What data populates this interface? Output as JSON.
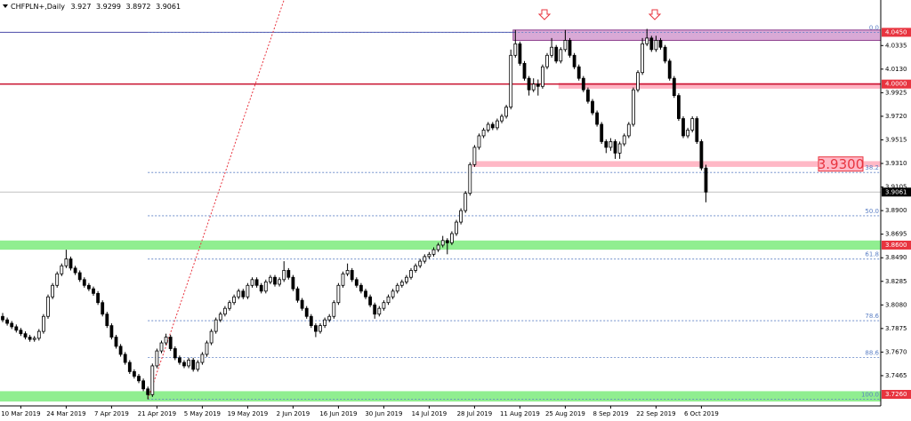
{
  "chart_data": {
    "type": "candlestick",
    "symbol": "CHFPLN+,Daily",
    "up_color": "#ffffff",
    "down_color": "#000000",
    "wick_color": "#000000",
    "categories": [
      null,
      null,
      null,
      null,
      "10 Mar 2019",
      null,
      null,
      null,
      null,
      null,
      null,
      null,
      null,
      null,
      "24 Mar 2019",
      null,
      null,
      null,
      null,
      null,
      null,
      null,
      null,
      null,
      "7 Apr 2019",
      null,
      null,
      null,
      null,
      null,
      null,
      null,
      null,
      null,
      "21 Apr 2019",
      null,
      null,
      null,
      null,
      null,
      null,
      null,
      null,
      null,
      "5 May 2019",
      null,
      null,
      null,
      null,
      null,
      null,
      null,
      null,
      null,
      "19 May 2019",
      null,
      null,
      null,
      null,
      null,
      null,
      null,
      null,
      null,
      "2 Jun 2019",
      null,
      null,
      null,
      null,
      null,
      null,
      null,
      null,
      null,
      "16 Jun 2019",
      null,
      null,
      null,
      null,
      null,
      null,
      null,
      null,
      null,
      "30 Jun 2019",
      null,
      null,
      null,
      null,
      null,
      null,
      null,
      null,
      null,
      "14 Jul 2019",
      null,
      null,
      null,
      null,
      null,
      null,
      null,
      null,
      null,
      "28 Jul 2019",
      null,
      null,
      null,
      null,
      null,
      null,
      null,
      null,
      null,
      "11 Aug 2019",
      null,
      null,
      null,
      null,
      null,
      null,
      null,
      null,
      null,
      "25 Aug 2019",
      null,
      null,
      null,
      null,
      null,
      null,
      null,
      null,
      null,
      "8 Sep 2019",
      null,
      null,
      null,
      null,
      null,
      null,
      null,
      null,
      null,
      "22 Sep 2019",
      null,
      null,
      null,
      null,
      null,
      null,
      null,
      null,
      null,
      "6 Oct 2019",
      null
    ],
    "ohlc": [
      [
        3.798,
        3.801,
        3.793,
        3.795
      ],
      [
        3.795,
        3.797,
        3.79,
        3.792
      ],
      [
        3.792,
        3.794,
        3.787,
        3.789
      ],
      [
        3.789,
        3.791,
        3.784,
        3.786
      ],
      [
        3.786,
        3.788,
        3.781,
        3.783
      ],
      [
        3.783,
        3.785,
        3.778,
        3.78
      ],
      [
        3.78,
        3.782,
        3.776,
        3.778
      ],
      [
        3.778,
        3.781,
        3.776,
        3.779
      ],
      [
        3.779,
        3.787,
        3.777,
        3.785
      ],
      [
        3.785,
        3.8,
        3.783,
        3.798
      ],
      [
        3.798,
        3.817,
        3.796,
        3.815
      ],
      [
        3.815,
        3.827,
        3.813,
        3.825
      ],
      [
        3.825,
        3.837,
        3.823,
        3.835
      ],
      [
        3.835,
        3.844,
        3.833,
        3.842
      ],
      [
        3.842,
        3.856,
        3.84,
        3.848
      ],
      [
        3.848,
        3.85,
        3.838,
        3.84
      ],
      [
        3.84,
        3.842,
        3.834,
        3.836
      ],
      [
        3.836,
        3.838,
        3.828,
        3.83
      ],
      [
        3.83,
        3.832,
        3.823,
        3.825
      ],
      [
        3.825,
        3.827,
        3.82,
        3.822
      ],
      [
        3.822,
        3.824,
        3.816,
        3.818
      ],
      [
        3.818,
        3.82,
        3.808,
        3.81
      ],
      [
        3.81,
        3.812,
        3.798,
        3.8
      ],
      [
        3.8,
        3.802,
        3.788,
        3.79
      ],
      [
        3.79,
        3.792,
        3.778,
        3.78
      ],
      [
        3.78,
        3.782,
        3.77,
        3.772
      ],
      [
        3.772,
        3.774,
        3.763,
        3.765
      ],
      [
        3.765,
        3.767,
        3.756,
        3.758
      ],
      [
        3.758,
        3.76,
        3.748,
        3.75
      ],
      [
        3.75,
        3.752,
        3.744,
        3.746
      ],
      [
        3.746,
        3.748,
        3.74,
        3.742
      ],
      [
        3.742,
        3.744,
        3.733,
        3.735
      ],
      [
        3.735,
        3.737,
        3.726,
        3.73
      ],
      [
        3.73,
        3.757,
        3.728,
        3.755
      ],
      [
        3.755,
        3.77,
        3.753,
        3.768
      ],
      [
        3.768,
        3.777,
        3.766,
        3.775
      ],
      [
        3.775,
        3.783,
        3.773,
        3.78
      ],
      [
        3.78,
        3.782,
        3.768,
        3.77
      ],
      [
        3.77,
        3.772,
        3.76,
        3.762
      ],
      [
        3.762,
        3.764,
        3.756,
        3.758
      ],
      [
        3.758,
        3.76,
        3.753,
        3.755
      ],
      [
        3.755,
        3.762,
        3.753,
        3.76
      ],
      [
        3.76,
        3.762,
        3.75,
        3.752
      ],
      [
        3.752,
        3.76,
        3.75,
        3.758
      ],
      [
        3.758,
        3.767,
        3.756,
        3.765
      ],
      [
        3.765,
        3.777,
        3.763,
        3.775
      ],
      [
        3.775,
        3.787,
        3.773,
        3.785
      ],
      [
        3.785,
        3.797,
        3.783,
        3.795
      ],
      [
        3.795,
        3.802,
        3.793,
        3.8
      ],
      [
        3.8,
        3.807,
        3.798,
        3.805
      ],
      [
        3.805,
        3.812,
        3.803,
        3.81
      ],
      [
        3.81,
        3.817,
        3.808,
        3.815
      ],
      [
        3.815,
        3.822,
        3.813,
        3.82
      ],
      [
        3.82,
        3.822,
        3.813,
        3.815
      ],
      [
        3.815,
        3.827,
        3.813,
        3.825
      ],
      [
        3.825,
        3.832,
        3.823,
        3.83
      ],
      [
        3.83,
        3.832,
        3.823,
        3.825
      ],
      [
        3.825,
        3.827,
        3.818,
        3.82
      ],
      [
        3.82,
        3.83,
        3.818,
        3.828
      ],
      [
        3.828,
        3.834,
        3.826,
        3.832
      ],
      [
        3.832,
        3.834,
        3.824,
        3.826
      ],
      [
        3.826,
        3.832,
        3.824,
        3.83
      ],
      [
        3.83,
        3.846,
        3.828,
        3.838
      ],
      [
        3.838,
        3.84,
        3.83,
        3.832
      ],
      [
        3.832,
        3.834,
        3.82,
        3.822
      ],
      [
        3.822,
        3.824,
        3.81,
        3.812
      ],
      [
        3.812,
        3.814,
        3.803,
        3.805
      ],
      [
        3.805,
        3.807,
        3.796,
        3.798
      ],
      [
        3.798,
        3.8,
        3.788,
        3.79
      ],
      [
        3.79,
        3.792,
        3.78,
        3.785
      ],
      [
        3.785,
        3.792,
        3.783,
        3.79
      ],
      [
        3.79,
        3.797,
        3.788,
        3.795
      ],
      [
        3.795,
        3.8,
        3.793,
        3.798
      ],
      [
        3.798,
        3.812,
        3.796,
        3.81
      ],
      [
        3.81,
        3.827,
        3.808,
        3.825
      ],
      [
        3.825,
        3.837,
        3.823,
        3.835
      ],
      [
        3.835,
        3.844,
        3.833,
        3.838
      ],
      [
        3.838,
        3.84,
        3.828,
        3.83
      ],
      [
        3.83,
        3.832,
        3.823,
        3.825
      ],
      [
        3.825,
        3.827,
        3.818,
        3.82
      ],
      [
        3.82,
        3.822,
        3.813,
        3.815
      ],
      [
        3.815,
        3.817,
        3.806,
        3.808
      ],
      [
        3.808,
        3.81,
        3.796,
        3.8
      ],
      [
        3.8,
        3.807,
        3.798,
        3.805
      ],
      [
        3.805,
        3.812,
        3.803,
        3.81
      ],
      [
        3.81,
        3.817,
        3.808,
        3.815
      ],
      [
        3.815,
        3.822,
        3.813,
        3.82
      ],
      [
        3.82,
        3.827,
        3.818,
        3.825
      ],
      [
        3.825,
        3.83,
        3.823,
        3.828
      ],
      [
        3.828,
        3.834,
        3.826,
        3.832
      ],
      [
        3.832,
        3.84,
        3.83,
        3.838
      ],
      [
        3.838,
        3.844,
        3.836,
        3.842
      ],
      [
        3.842,
        3.848,
        3.84,
        3.846
      ],
      [
        3.846,
        3.852,
        3.844,
        3.85
      ],
      [
        3.85,
        3.854,
        3.848,
        3.852
      ],
      [
        3.852,
        3.858,
        3.85,
        3.856
      ],
      [
        3.856,
        3.862,
        3.854,
        3.86
      ],
      [
        3.86,
        3.868,
        3.858,
        3.864
      ],
      [
        3.864,
        3.866,
        3.852,
        3.862
      ],
      [
        3.862,
        3.872,
        3.86,
        3.87
      ],
      [
        3.87,
        3.882,
        3.868,
        3.88
      ],
      [
        3.88,
        3.892,
        3.878,
        3.89
      ],
      [
        3.89,
        3.907,
        3.888,
        3.905
      ],
      [
        3.905,
        3.932,
        3.903,
        3.93
      ],
      [
        3.93,
        3.947,
        3.928,
        3.945
      ],
      [
        3.945,
        3.957,
        3.943,
        3.955
      ],
      [
        3.955,
        3.962,
        3.953,
        3.96
      ],
      [
        3.96,
        3.967,
        3.958,
        3.965
      ],
      [
        3.965,
        3.967,
        3.96,
        3.962
      ],
      [
        3.962,
        3.97,
        3.96,
        3.968
      ],
      [
        3.968,
        3.974,
        3.966,
        3.972
      ],
      [
        3.972,
        3.982,
        3.97,
        3.98
      ],
      [
        3.98,
        4.03,
        3.978,
        4.025
      ],
      [
        4.025,
        4.047,
        4.023,
        4.035
      ],
      [
        4.035,
        4.037,
        4.016,
        4.018
      ],
      [
        4.018,
        4.02,
        4.003,
        4.005
      ],
      [
        4.005,
        4.007,
        3.99,
        3.995
      ],
      [
        3.995,
        4.005,
        3.993,
        4.0
      ],
      [
        4.0,
        4.004,
        3.99,
        3.998
      ],
      [
        3.998,
        4.017,
        3.996,
        4.015
      ],
      [
        4.015,
        4.027,
        4.013,
        4.025
      ],
      [
        4.025,
        4.04,
        4.023,
        4.032
      ],
      [
        4.032,
        4.034,
        4.018,
        4.02
      ],
      [
        4.02,
        4.032,
        4.018,
        4.03
      ],
      [
        4.03,
        4.047,
        4.028,
        4.038
      ],
      [
        4.038,
        4.04,
        4.023,
        4.025
      ],
      [
        4.025,
        4.027,
        4.013,
        4.015
      ],
      [
        4.015,
        4.017,
        4.003,
        4.005
      ],
      [
        4.005,
        4.007,
        3.993,
        3.995
      ],
      [
        3.995,
        3.997,
        3.983,
        3.985
      ],
      [
        3.985,
        3.987,
        3.973,
        3.975
      ],
      [
        3.975,
        3.977,
        3.963,
        3.965
      ],
      [
        3.965,
        3.967,
        3.948,
        3.95
      ],
      [
        3.95,
        3.952,
        3.94,
        3.945
      ],
      [
        3.945,
        3.953,
        3.942,
        3.95
      ],
      [
        3.95,
        3.952,
        3.935,
        3.94
      ],
      [
        3.94,
        3.95,
        3.935,
        3.948
      ],
      [
        3.948,
        3.957,
        3.946,
        3.955
      ],
      [
        3.955,
        3.967,
        3.953,
        3.965
      ],
      [
        3.965,
        3.997,
        3.963,
        3.995
      ],
      [
        3.995,
        4.012,
        3.993,
        4.01
      ],
      [
        4.01,
        4.04,
        4.008,
        4.035
      ],
      [
        4.035,
        4.048,
        4.033,
        4.04
      ],
      [
        4.04,
        4.042,
        4.028,
        4.03
      ],
      [
        4.03,
        4.042,
        4.028,
        4.038
      ],
      [
        4.038,
        4.04,
        4.03,
        4.032
      ],
      [
        4.032,
        4.034,
        4.018,
        4.02
      ],
      [
        4.02,
        4.022,
        4.003,
        4.005
      ],
      [
        4.005,
        4.007,
        3.988,
        3.99
      ],
      [
        3.99,
        3.992,
        3.968,
        3.97
      ],
      [
        3.97,
        3.972,
        3.953,
        3.955
      ],
      [
        3.955,
        3.962,
        3.953,
        3.96
      ],
      [
        3.96,
        3.972,
        3.958,
        3.97
      ],
      [
        3.97,
        3.972,
        3.948,
        3.95
      ],
      [
        3.95,
        3.952,
        3.925,
        3.927
      ],
      [
        3.927,
        3.9299,
        3.8972,
        3.9061
      ]
    ],
    "ylim": [
      3.7202,
      4.0731
    ],
    "yticks": [
      {
        "value": 3.7465,
        "label": "3.7465"
      },
      {
        "value": 3.767,
        "label": "3.7670"
      },
      {
        "value": 3.7875,
        "label": "3.7875"
      },
      {
        "value": 3.808,
        "label": "3.8080"
      },
      {
        "value": 3.8285,
        "label": "3.8285"
      },
      {
        "value": 3.849,
        "label": "3.8490"
      },
      {
        "value": 3.8695,
        "label": "3.8695"
      },
      {
        "value": 3.89,
        "label": "3.8900"
      },
      {
        "value": 3.9105,
        "label": "3.9105"
      },
      {
        "value": 3.931,
        "label": "3.9310"
      },
      {
        "value": 3.9515,
        "label": "3.9515"
      },
      {
        "value": 3.972,
        "label": "3.9720"
      },
      {
        "value": 3.9925,
        "label": "3.9925"
      },
      {
        "value": 4.013,
        "label": "4.0130"
      },
      {
        "value": 4.0335,
        "label": "4.0335"
      }
    ],
    "levels": [
      {
        "value": 4.045,
        "label": "4.0450"
      },
      {
        "value": 4.0,
        "label": "4.0000"
      },
      {
        "value": 3.86,
        "label": "3.8600"
      },
      {
        "value": 3.726,
        "label": "3.7260"
      }
    ],
    "level_color": "#e8343f",
    "zones": [
      {
        "y": [
          4.038,
          4.047
        ],
        "x_from": 113,
        "color": "#d9a9d6",
        "border": "#8e3f8e"
      },
      {
        "y": [
          3.996,
          4.001
        ],
        "x_from": 123,
        "color": "#ffb3c2"
      },
      {
        "y": [
          3.928,
          3.933
        ],
        "x_from": 104,
        "color": "#ffb8c6",
        "label": "3.9300"
      },
      {
        "y": [
          3.856,
          3.864
        ],
        "color": "#90ee90"
      },
      {
        "y": [
          3.724,
          3.733
        ],
        "color": "#90ee90"
      }
    ],
    "hlines": [
      {
        "y": 4.045,
        "x_to": 113,
        "color": "#4a4aa8"
      },
      {
        "y": 4.0,
        "color": "#c8102e"
      }
    ],
    "fib": {
      "high": 4.045,
      "low": 3.726,
      "color": "#5b7fc4",
      "levels": [
        {
          "value": 0,
          "label": "0.0"
        },
        38.2,
        {
          "value": 50,
          "label": "50.0"
        },
        61.8,
        78.6,
        88.6,
        {
          "value": 100,
          "label": "100.0"
        }
      ]
    },
    "trendline": {
      "x": [
        32,
        62
      ],
      "y": [
        3.726,
        4.0731
      ],
      "color": "#e8343f"
    }
  }
}
